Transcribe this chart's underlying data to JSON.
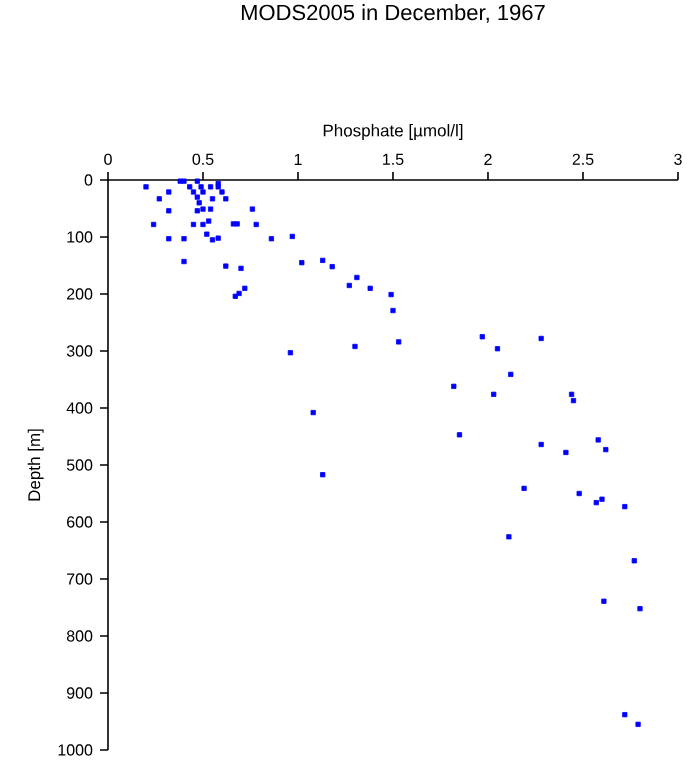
{
  "chart_data": {
    "type": "scatter",
    "title": "MODS2005 in December, 1967",
    "xlabel": "Phosphate [µmol/l]",
    "ylabel": "Depth [m]",
    "xlim": [
      0,
      3
    ],
    "xticks": [
      0,
      0.5,
      1,
      1.5,
      2,
      2.5,
      3
    ],
    "ylim": [
      1000,
      0
    ],
    "yticks": [
      0,
      100,
      200,
      300,
      400,
      500,
      600,
      700,
      800,
      900,
      1000
    ],
    "marker": "square",
    "grid": false,
    "series": [
      {
        "color": "#0000ff",
        "x": [
          0.2,
          0.27,
          0.32,
          0.32,
          0.24,
          0.32,
          0.38,
          0.4,
          0.43,
          0.45,
          0.47,
          0.48,
          0.5,
          0.49,
          0.47,
          0.47,
          0.5,
          0.54,
          0.45,
          0.5,
          0.53,
          0.52,
          0.55,
          0.4,
          0.4,
          0.58,
          0.54,
          0.55,
          0.58,
          0.6,
          0.62,
          0.66,
          0.68,
          0.58,
          0.76,
          0.78,
          0.86,
          0.97,
          1.02,
          1.13,
          1.18,
          1.27,
          1.31,
          1.38,
          0.62,
          0.7,
          0.72,
          0.69,
          0.67,
          0.96,
          1.3,
          1.08,
          1.49,
          1.5,
          1.53,
          1.97,
          2.05,
          2.28,
          2.12,
          1.82,
          2.03,
          2.44,
          2.45,
          1.85,
          2.28,
          2.41,
          2.58,
          2.62,
          1.13,
          2.19,
          2.48,
          2.57,
          2.6,
          2.72,
          2.11,
          2.77,
          2.61,
          2.8,
          2.72,
          2.79
        ],
        "values": [
          12,
          33,
          21,
          54,
          78,
          103,
          2,
          2,
          12,
          21,
          30,
          40,
          21,
          12,
          2,
          54,
          51,
          51,
          78,
          78,
          72,
          95,
          105,
          103,
          143,
          6,
          12,
          33,
          12,
          21,
          33,
          77,
          77,
          102,
          51,
          78,
          103,
          99,
          145,
          141,
          152,
          185,
          171,
          190,
          151,
          155,
          190,
          199,
          204,
          303,
          292,
          408,
          201,
          229,
          284,
          275,
          296,
          278,
          341,
          362,
          376,
          376,
          387,
          447,
          464,
          478,
          456,
          473,
          517,
          541,
          550,
          566,
          560,
          573,
          626,
          668,
          739,
          752,
          938,
          955
        ]
      }
    ]
  }
}
